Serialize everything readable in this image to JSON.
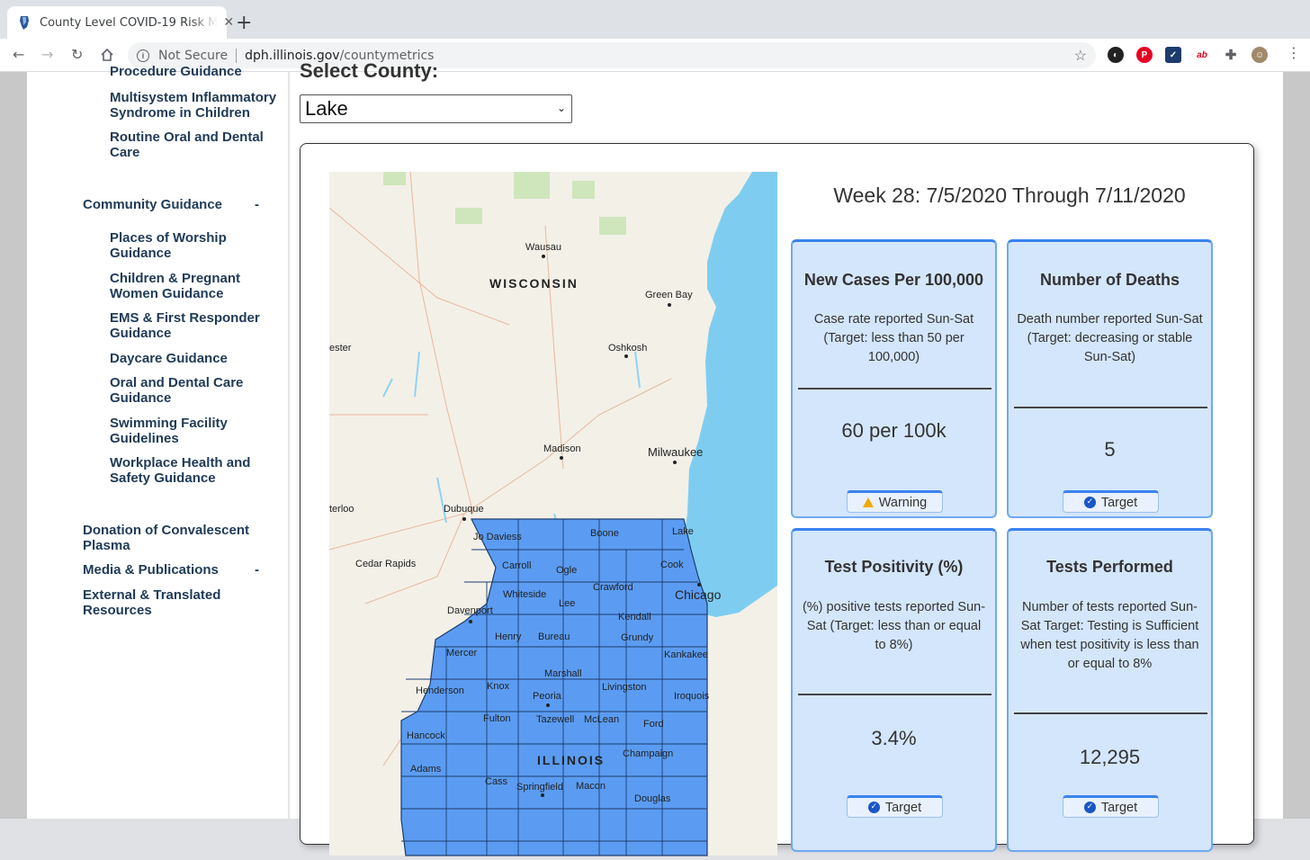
{
  "browser": {
    "tab_title": "County Level COVID-19 Risk M",
    "new_tab": "+",
    "tab_close": "✕",
    "security_label": "Not Secure",
    "url_host": "dph.illinois.gov",
    "url_path": "/countymetrics"
  },
  "sidebar": {
    "top_items": [
      {
        "label": "Procedure Guidance"
      },
      {
        "label": "Multisystem Inflammatory Syndrome in Children"
      },
      {
        "label": "Routine Oral and Dental Care"
      }
    ],
    "community_heading": "Community Guidance",
    "community_toggle": "-",
    "community_items": [
      {
        "label": "Places of Worship Guidance"
      },
      {
        "label": "Children & Pregnant Women Guidance"
      },
      {
        "label": "EMS & First Responder Guidance"
      },
      {
        "label": "Daycare Guidance"
      },
      {
        "label": "Oral and Dental Care Guidance"
      },
      {
        "label": "Swimming Facility Guidelines"
      },
      {
        "label": "Workplace Health and Safety Guidance"
      }
    ],
    "donation": "Donation of Convalescent Plasma",
    "media": "Media & Publications",
    "media_toggle": "-",
    "external": "External & Translated Resources"
  },
  "main": {
    "select_label": "Select County:",
    "county_selected": "Lake",
    "week_title": "Week 28: 7/5/2020 Through 7/11/2020",
    "cards": [
      {
        "title": "New Cases Per 100,000",
        "desc": "Case rate reported Sun-Sat (Target: less than 50 per 100,000)",
        "value": "60 per 100k",
        "badge": "Warning",
        "status": "warning"
      },
      {
        "title": "Number of Deaths",
        "desc": "Death number reported Sun-Sat (Target: decreasing or stable Sun-Sat)",
        "value": "5",
        "badge": "Target",
        "status": "target"
      },
      {
        "title": "Test Positivity (%)",
        "desc": "(%) positive tests reported Sun-Sat (Target: less than or equal to 8%)",
        "value": "3.4%",
        "badge": "Target",
        "status": "target"
      },
      {
        "title": "Tests Performed",
        "desc": "Number of tests reported Sun-Sat Target: Testing is Sufficient when test positivity is less than or equal to 8%",
        "value": "12,295",
        "badge": "Target",
        "status": "target"
      }
    ]
  },
  "map": {
    "labels": {
      "wausau": "Wausau",
      "wisconsin": "WISCONSIN",
      "green_bay": "Green Bay",
      "oshkosh": "Oshkosh",
      "ester": "ester",
      "madison": "Madison",
      "milwaukee": "Milwaukee",
      "dubuque": "Dubuque",
      "terloo": "terloo",
      "jo_daviess": "Jo Daviess",
      "boone": "Boone",
      "lake": "Lake",
      "cedar_rapids": "Cedar Rapids",
      "carroll": "Carroll",
      "ogle": "Ogle",
      "cook": "Cook",
      "crawford": "Crawford",
      "chicago": "Chicago",
      "whiteside": "Whiteside",
      "lee": "Lee",
      "davenport": "Davenport",
      "kendall": "Kendall",
      "henry": "Henry",
      "bureau": "Bureau",
      "grundy": "Grundy",
      "mercer": "Mercer",
      "kankakee": "Kankakee",
      "marshall": "Marshall",
      "henderson": "Henderson",
      "knox": "Knox",
      "livingston": "Livingston",
      "iroquois": "Iroquois",
      "peoria": "Peoria",
      "fulton": "Fulton",
      "tazewell": "Tazewell",
      "mclean": "McLean",
      "ford": "Ford",
      "hancock": "Hancock",
      "champaign": "Champaign",
      "illinois": "ILLINOIS",
      "adams": "Adams",
      "cass": "Cass",
      "springfield": "Springfield",
      "macon": "Macon",
      "douglas": "Douglas"
    },
    "colors": {
      "water": "#7ecdf0",
      "land": "#f3f0e8",
      "county_fill": "#5b9cf2",
      "county_line": "#1c3d6e"
    }
  },
  "colors": {
    "accent": "#3a82ef",
    "card_bg": "#d4e6fb",
    "nav_text": "#1f3a57"
  },
  "icons": [
    "back-arrow-icon",
    "forward-arrow-icon",
    "reload-icon",
    "home-icon",
    "info-icon",
    "star-icon",
    "check-circle-icon",
    "warning-triangle-icon"
  ]
}
